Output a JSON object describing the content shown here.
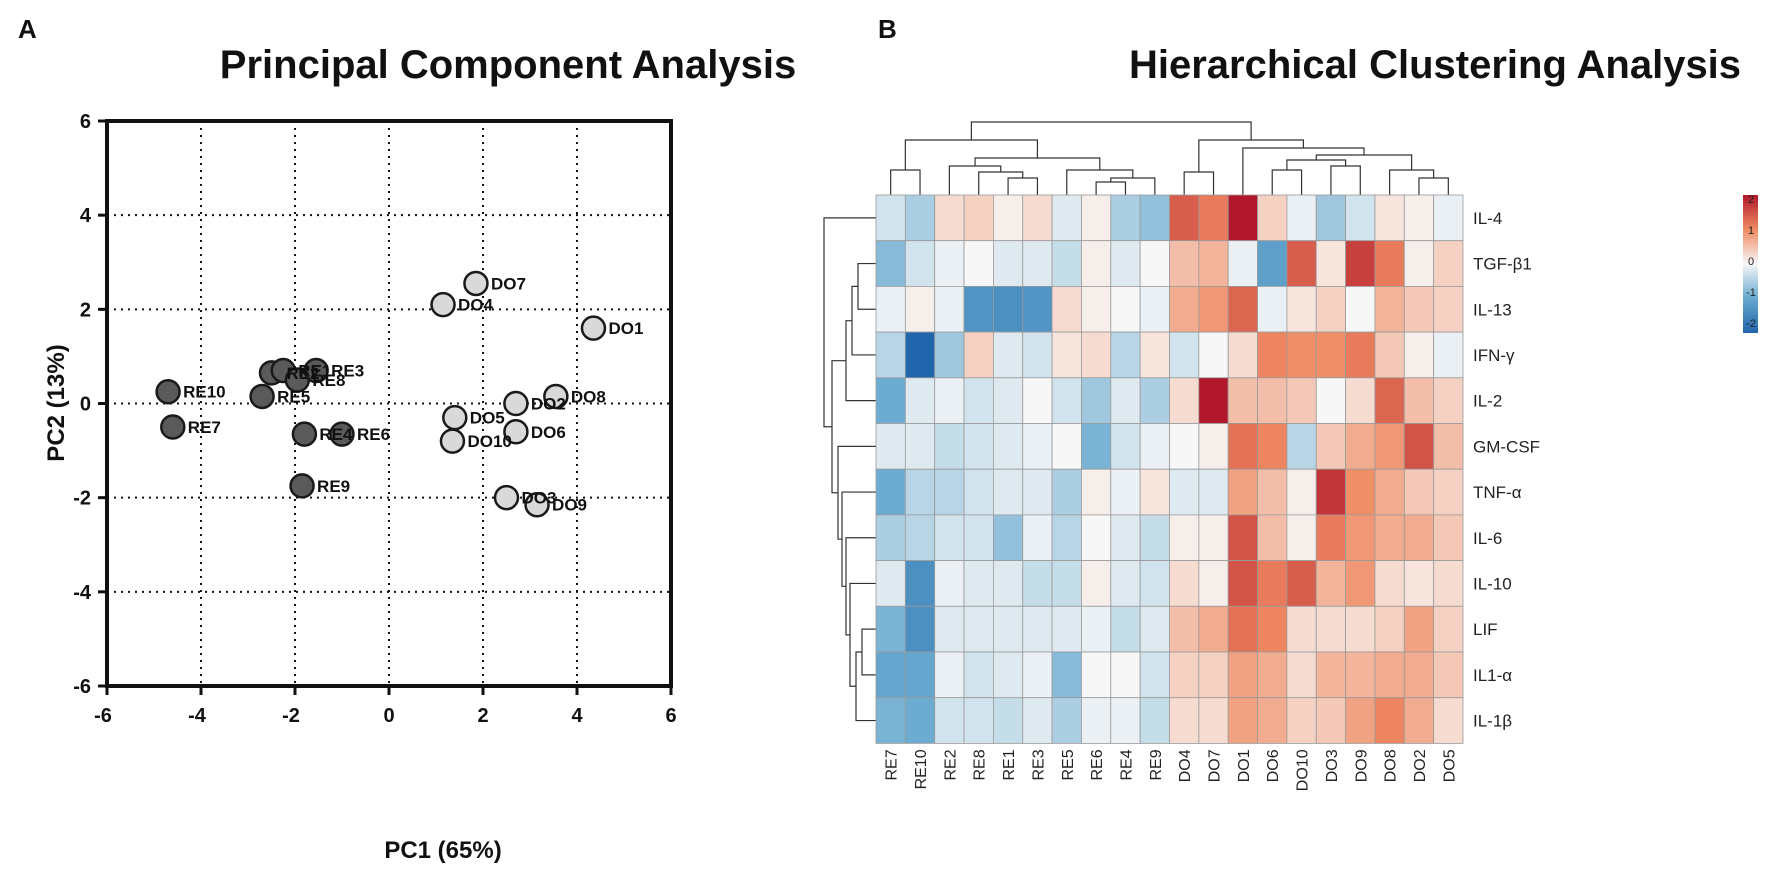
{
  "panels": {
    "a_letter": "A",
    "b_letter": "B"
  },
  "colors": {
    "re_fill": "#5a5a5a",
    "do_fill": "#d9d9d9",
    "stroke": "#1a1a1a",
    "heat_low": "#2166ac",
    "heat_mid": "#f7f7f7",
    "heat_high": "#b2182b"
  },
  "chart_data": [
    {
      "type": "scatter",
      "title": "Principal Component Analysis",
      "xlabel": "PC1 (65%)",
      "ylabel": "PC2 (13%)",
      "xlim": [
        -6,
        6
      ],
      "ylim": [
        -6,
        6
      ],
      "xticks": [
        -6,
        -4,
        -2,
        0,
        2,
        4,
        6
      ],
      "yticks": [
        -6,
        -4,
        -2,
        0,
        2,
        4,
        6
      ],
      "grid": true,
      "series": [
        {
          "name": "RE",
          "color": "#5a5a5a",
          "points": [
            {
              "label": "RE10",
              "x": -4.7,
              "y": 0.25
            },
            {
              "label": "RE7",
              "x": -4.6,
              "y": -0.5
            },
            {
              "label": "RE5",
              "x": -2.7,
              "y": 0.15
            },
            {
              "label": "RE2",
              "x": -2.5,
              "y": 0.65
            },
            {
              "label": "RE1",
              "x": -2.25,
              "y": 0.7
            },
            {
              "label": "RE8",
              "x": -1.95,
              "y": 0.5
            },
            {
              "label": "RE3",
              "x": -1.55,
              "y": 0.7
            },
            {
              "label": "RE4",
              "x": -1.8,
              "y": -0.65
            },
            {
              "label": "RE6",
              "x": -1.0,
              "y": -0.65
            },
            {
              "label": "RE9",
              "x": -1.85,
              "y": -1.75
            }
          ]
        },
        {
          "name": "DO",
          "color": "#d9d9d9",
          "points": [
            {
              "label": "DO7",
              "x": 1.85,
              "y": 2.55
            },
            {
              "label": "DO4",
              "x": 1.15,
              "y": 2.1
            },
            {
              "label": "DO1",
              "x": 4.35,
              "y": 1.6
            },
            {
              "label": "DO8",
              "x": 3.55,
              "y": 0.15
            },
            {
              "label": "DO2",
              "x": 2.7,
              "y": 0.0
            },
            {
              "label": "DO5",
              "x": 1.4,
              "y": -0.3
            },
            {
              "label": "DO6",
              "x": 2.7,
              "y": -0.6
            },
            {
              "label": "DO10",
              "x": 1.35,
              "y": -0.8
            },
            {
              "label": "DO3",
              "x": 2.5,
              "y": -2.0
            },
            {
              "label": "DO9",
              "x": 3.15,
              "y": -2.15
            }
          ]
        }
      ]
    },
    {
      "type": "heatmap",
      "title": "Hierarchical Clustering Analysis",
      "columns": [
        "RE7",
        "RE10",
        "RE2",
        "RE8",
        "RE1",
        "RE3",
        "RE5",
        "RE6",
        "RE4",
        "RE9",
        "DO4",
        "DO7",
        "DO1",
        "DO6",
        "DO10",
        "DO3",
        "DO9",
        "DO8",
        "DO2",
        "DO5"
      ],
      "rows": [
        "IL-4",
        "TGF-β1",
        "IL-13",
        "IFN-γ",
        "IL-2",
        "GM-CSF",
        "TNF-α",
        "IL-6",
        "IL-10",
        "LIF",
        "IL1-α",
        "IL-1β"
      ],
      "color_range": [
        -2.3,
        2.3
      ],
      "legend_ticks": [
        "2",
        "1",
        "0",
        "-1",
        "-2"
      ],
      "values": [
        [
          -0.3,
          -0.6,
          0.3,
          0.4,
          0.1,
          0.3,
          -0.2,
          0.1,
          -0.6,
          -0.8,
          1.6,
          1.3,
          2.3,
          0.4,
          -0.1,
          -0.7,
          -0.3,
          0.2,
          0.1,
          -0.1
        ],
        [
          -0.9,
          -0.3,
          -0.1,
          0.0,
          -0.2,
          -0.2,
          -0.4,
          0.1,
          -0.2,
          0.0,
          0.6,
          0.7,
          -0.1,
          -1.3,
          1.6,
          0.2,
          1.9,
          1.3,
          0.1,
          0.4
        ],
        [
          -0.1,
          0.1,
          -0.1,
          -1.5,
          -1.6,
          -1.5,
          0.3,
          0.1,
          0.0,
          -0.1,
          0.8,
          1.0,
          1.5,
          -0.1,
          0.2,
          0.4,
          0.0,
          0.7,
          0.5,
          0.4
        ],
        [
          -0.5,
          -2.3,
          -0.7,
          0.4,
          -0.2,
          -0.3,
          0.2,
          0.3,
          -0.5,
          0.2,
          -0.3,
          0.0,
          0.3,
          1.2,
          1.1,
          1.1,
          1.3,
          0.5,
          0.1,
          -0.1
        ],
        [
          -1.1,
          -0.2,
          -0.1,
          -0.3,
          -0.2,
          0.0,
          -0.3,
          -0.7,
          -0.2,
          -0.6,
          0.3,
          2.4,
          0.6,
          0.6,
          0.5,
          0.0,
          0.3,
          1.5,
          0.6,
          0.4
        ],
        [
          -0.2,
          -0.2,
          -0.4,
          -0.3,
          -0.2,
          -0.1,
          0.0,
          -1.0,
          -0.3,
          -0.1,
          0.0,
          0.1,
          1.4,
          1.2,
          -0.5,
          0.5,
          0.8,
          1.0,
          1.7,
          0.6
        ],
        [
          -1.1,
          -0.5,
          -0.5,
          -0.3,
          -0.2,
          -0.2,
          -0.6,
          0.1,
          -0.1,
          0.2,
          -0.2,
          -0.2,
          0.9,
          0.6,
          0.1,
          2.0,
          1.1,
          0.8,
          0.5,
          0.4
        ],
        [
          -0.6,
          -0.5,
          -0.3,
          -0.3,
          -0.8,
          -0.1,
          -0.5,
          0.0,
          -0.2,
          -0.4,
          0.1,
          0.1,
          1.7,
          0.6,
          0.1,
          1.3,
          1.0,
          0.8,
          0.8,
          0.5
        ],
        [
          -0.2,
          -1.6,
          -0.1,
          -0.2,
          -0.2,
          -0.4,
          -0.4,
          0.1,
          -0.2,
          -0.3,
          0.3,
          0.1,
          1.7,
          1.3,
          1.6,
          0.7,
          1.0,
          0.3,
          0.2,
          0.3
        ],
        [
          -1.0,
          -1.6,
          -0.2,
          -0.2,
          -0.2,
          -0.2,
          -0.2,
          -0.1,
          -0.4,
          -0.2,
          0.6,
          0.8,
          1.4,
          1.2,
          0.3,
          0.3,
          0.3,
          0.4,
          0.9,
          0.4
        ],
        [
          -1.2,
          -1.2,
          -0.1,
          -0.3,
          -0.2,
          -0.1,
          -0.9,
          0.0,
          0.0,
          -0.3,
          0.4,
          0.4,
          0.9,
          0.8,
          0.3,
          0.7,
          0.7,
          0.8,
          0.8,
          0.5
        ],
        [
          -1.0,
          -1.1,
          -0.3,
          -0.3,
          -0.4,
          -0.2,
          -0.6,
          -0.1,
          -0.1,
          -0.4,
          0.3,
          0.3,
          0.9,
          0.8,
          0.4,
          0.5,
          0.9,
          1.2,
          0.8,
          0.3
        ]
      ]
    }
  ]
}
